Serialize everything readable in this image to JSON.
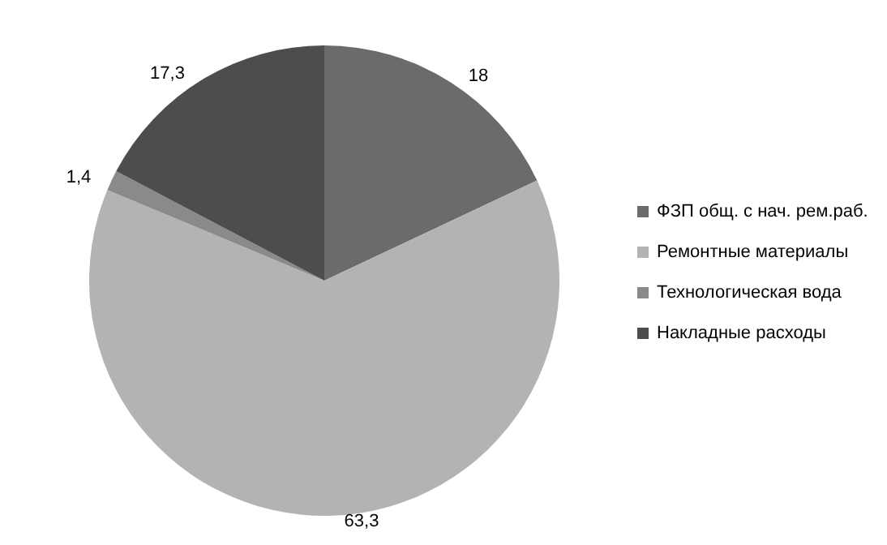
{
  "chart_data": {
    "type": "pie",
    "categories": [
      "ФЗП общ. с нач. рем.раб.",
      "Ремонтные материалы",
      "Технологическая вода",
      "Накладные расходы"
    ],
    "values": [
      18,
      63.3,
      1.4,
      17.3
    ],
    "value_labels": [
      "18",
      "63,3",
      "1,4",
      "17,3"
    ],
    "colors": [
      "#6b6b6b",
      "#b3b3b3",
      "#8a8a8a",
      "#4d4d4d"
    ],
    "legend": "right"
  }
}
